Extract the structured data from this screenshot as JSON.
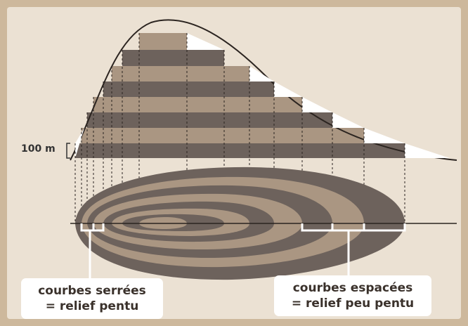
{
  "scale": {
    "label": "100 m"
  },
  "callouts": {
    "steep": {
      "line1": "courbes serrées",
      "line2": "= relief pentu"
    },
    "gentle": {
      "line1": "courbes espacées",
      "line2": "= relief peu pentu"
    }
  },
  "colors": {
    "frame": "#cdb89c",
    "paper": "#ebe1d3",
    "dark_band": "#6d625c",
    "light_band": "#aa9682",
    "ink": "#3a312b"
  }
}
